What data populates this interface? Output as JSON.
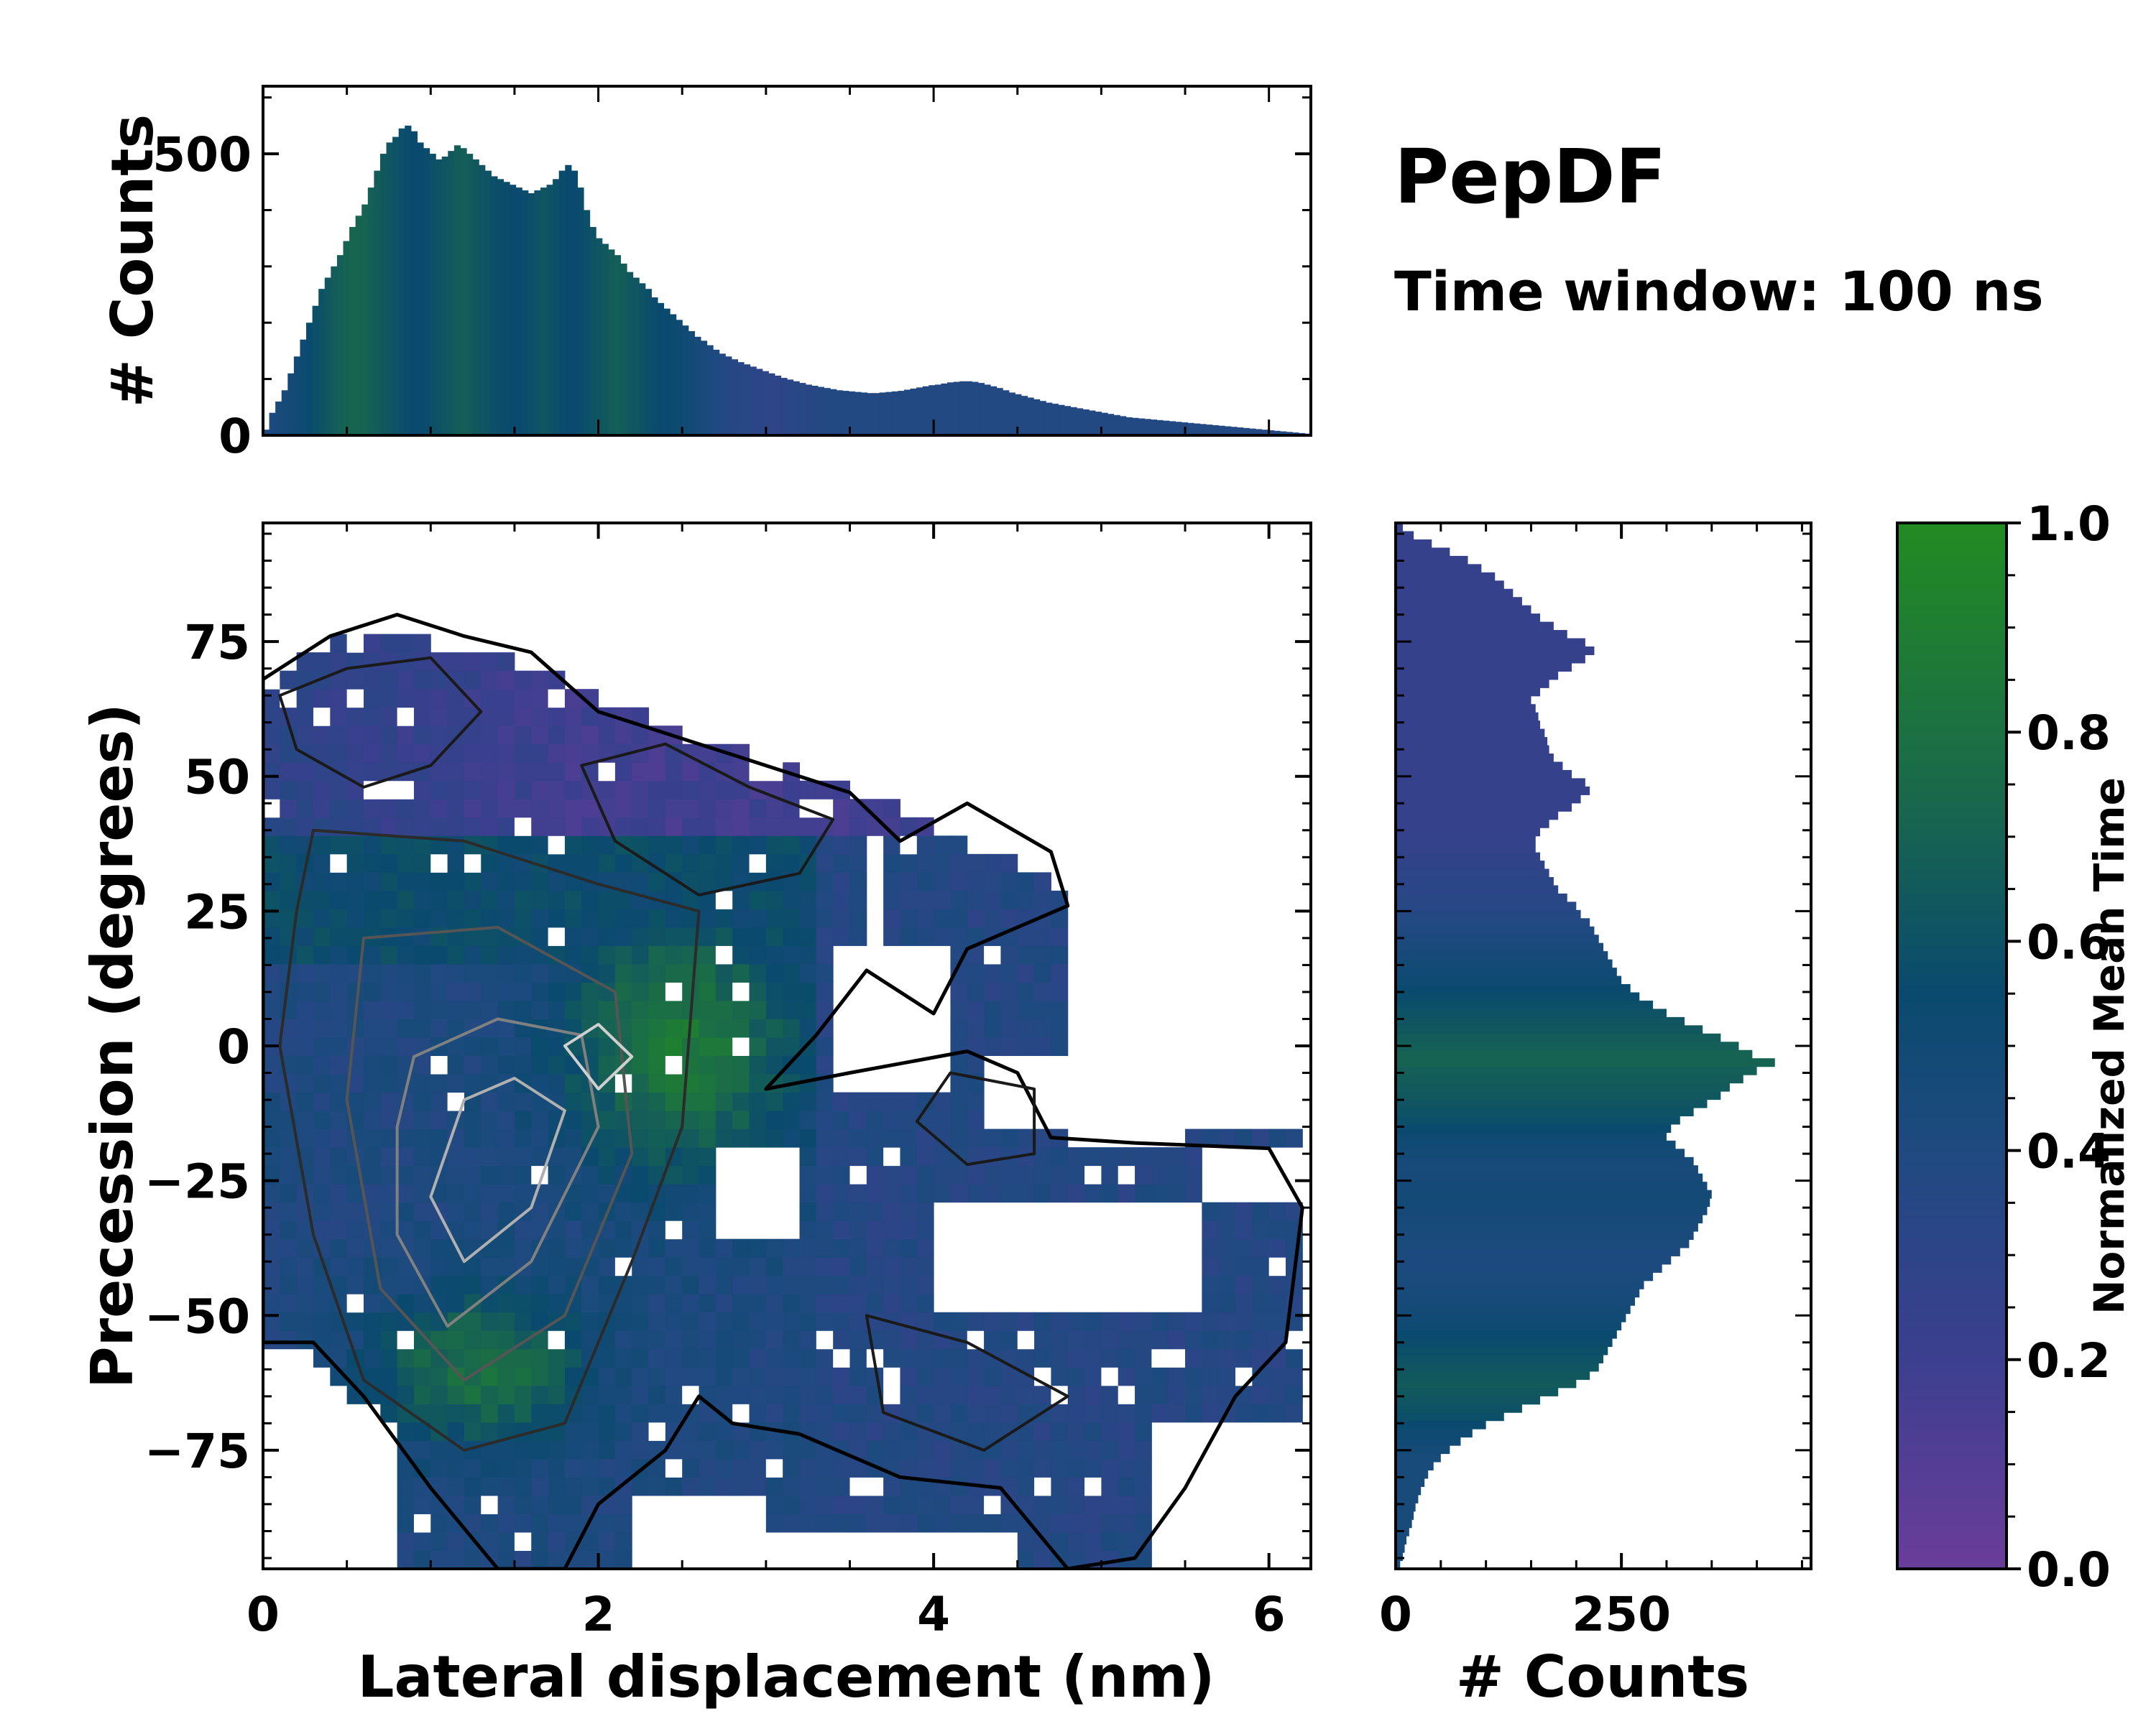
{
  "title_block": {
    "title": "PepDF",
    "subtitle": "Time window: 100 ns"
  },
  "chart_data": [
    {
      "id": "main",
      "type": "heatmap",
      "xlabel": "Lateral displacement (nm)",
      "ylabel": "Precession (degrees)",
      "xlim": [
        0,
        6.25
      ],
      "ylim": [
        -97,
        97
      ],
      "xticks": [
        0,
        2,
        4,
        6
      ],
      "xtick_labels": [
        "0",
        "2",
        "4",
        "6"
      ],
      "yticks": [
        75,
        50,
        25,
        0,
        -25,
        -50,
        -75
      ],
      "ytick_labels": [
        "75",
        "50",
        "25",
        "0",
        "−25",
        "−50",
        "−75"
      ],
      "value_label": "Normalized Mean Time",
      "description": "Occupied region colored by normalized mean time; overlaid density contours",
      "contours": [
        {
          "level": "low",
          "color": "#000000",
          "shape": "outer support boundary"
        },
        {
          "level": "mid",
          "color": "#2b2b2b",
          "shape": "density"
        },
        {
          "level": "high",
          "color": "#808080",
          "shape": "density"
        },
        {
          "level": "peak",
          "color": "#cfcfcf",
          "shape": "density"
        }
      ]
    },
    {
      "id": "top-hist",
      "type": "bar",
      "ylabel": "# Counts",
      "ylim": [
        0,
        620
      ],
      "yticks": [
        0,
        500
      ],
      "ytick_labels": [
        "0",
        "500"
      ],
      "bin_range": [
        0,
        6.25
      ],
      "values": [
        10,
        40,
        60,
        80,
        110,
        140,
        170,
        200,
        230,
        260,
        280,
        300,
        320,
        345,
        370,
        390,
        410,
        440,
        470,
        500,
        520,
        530,
        545,
        550,
        540,
        520,
        510,
        500,
        490,
        495,
        505,
        515,
        510,
        500,
        490,
        480,
        470,
        460,
        455,
        450,
        445,
        440,
        435,
        430,
        435,
        440,
        445,
        455,
        470,
        480,
        470,
        440,
        400,
        370,
        350,
        340,
        330,
        320,
        305,
        290,
        280,
        270,
        260,
        245,
        235,
        225,
        215,
        205,
        195,
        185,
        175,
        168,
        160,
        152,
        145,
        140,
        135,
        130,
        126,
        122,
        118,
        114,
        110,
        106,
        102,
        99,
        96,
        93,
        90,
        88,
        86,
        84,
        82,
        80,
        79,
        78,
        77,
        76,
        75,
        75,
        76,
        77,
        78,
        79,
        81,
        83,
        85,
        87,
        89,
        90,
        92,
        94,
        95,
        96,
        96,
        95,
        93,
        90,
        87,
        84,
        80,
        76,
        73,
        70,
        67,
        64,
        61,
        58,
        56,
        54,
        52,
        50,
        48,
        46,
        44,
        42,
        40,
        38,
        36,
        34,
        32,
        31,
        30,
        29,
        28,
        27,
        26,
        25,
        24,
        23,
        22,
        21,
        20,
        19,
        18,
        17,
        16,
        15,
        14,
        13,
        12,
        11,
        10,
        9,
        8,
        7,
        6,
        5,
        4,
        3
      ],
      "color_values": [
        0.4,
        0.42,
        0.44,
        0.46,
        0.48,
        0.5,
        0.52,
        0.55,
        0.58,
        0.6,
        0.63,
        0.66,
        0.68,
        0.7,
        0.72,
        0.72,
        0.7,
        0.68,
        0.66,
        0.64,
        0.62,
        0.6,
        0.58,
        0.56,
        0.55,
        0.55,
        0.56,
        0.58,
        0.6,
        0.62,
        0.64,
        0.66,
        0.67,
        0.66,
        0.64,
        0.62,
        0.6,
        0.58,
        0.57,
        0.56,
        0.55,
        0.55,
        0.56,
        0.58,
        0.6,
        0.62,
        0.6,
        0.58,
        0.56,
        0.55,
        0.55,
        0.56,
        0.58,
        0.6,
        0.62,
        0.64,
        0.66,
        0.68,
        0.66,
        0.64,
        0.62,
        0.6,
        0.58,
        0.56,
        0.55,
        0.54,
        0.53,
        0.52,
        0.5,
        0.48,
        0.46,
        0.44,
        0.42,
        0.4,
        0.38,
        0.36,
        0.35,
        0.34,
        0.33,
        0.32,
        0.31,
        0.3,
        0.3,
        0.3,
        0.31,
        0.32,
        0.33,
        0.34,
        0.35,
        0.36,
        0.37,
        0.38,
        0.38,
        0.38,
        0.38,
        0.38,
        0.38,
        0.38,
        0.38,
        0.38,
        0.38,
        0.38,
        0.38,
        0.38,
        0.38,
        0.38,
        0.38,
        0.38,
        0.38,
        0.38,
        0.38,
        0.38,
        0.38,
        0.38,
        0.38,
        0.38,
        0.38,
        0.38,
        0.38,
        0.38,
        0.38,
        0.38,
        0.38,
        0.38,
        0.38,
        0.38,
        0.38,
        0.38,
        0.38,
        0.38,
        0.38,
        0.38,
        0.38,
        0.38,
        0.38,
        0.38,
        0.38,
        0.38,
        0.38,
        0.38,
        0.38,
        0.38,
        0.38,
        0.38,
        0.38,
        0.38,
        0.38,
        0.38,
        0.38,
        0.38,
        0.38,
        0.38,
        0.38,
        0.38,
        0.38,
        0.38,
        0.38,
        0.38,
        0.38,
        0.38,
        0.38,
        0.38,
        0.38,
        0.38,
        0.38,
        0.38,
        0.38,
        0.38,
        0.38,
        0.38
      ]
    },
    {
      "id": "right-hist",
      "type": "bar",
      "orientation": "horizontal",
      "xlabel": "# Counts",
      "xlim": [
        0,
        460
      ],
      "xticks": [
        0,
        250
      ],
      "xtick_labels": [
        "0",
        "250"
      ],
      "bin_range": [
        -97,
        97
      ],
      "values": [
        5,
        8,
        10,
        12,
        15,
        18,
        20,
        22,
        25,
        28,
        32,
        36,
        42,
        50,
        60,
        72,
        85,
        100,
        120,
        140,
        160,
        180,
        200,
        215,
        225,
        230,
        235,
        240,
        245,
        250,
        255,
        260,
        265,
        270,
        275,
        285,
        295,
        305,
        315,
        325,
        330,
        335,
        340,
        345,
        348,
        350,
        345,
        340,
        335,
        330,
        320,
        310,
        300,
        305,
        315,
        330,
        345,
        360,
        370,
        385,
        400,
        420,
        395,
        380,
        360,
        340,
        320,
        300,
        285,
        270,
        260,
        250,
        245,
        240,
        235,
        230,
        225,
        220,
        215,
        205,
        200,
        190,
        180,
        175,
        170,
        165,
        160,
        155,
        155,
        160,
        170,
        180,
        195,
        205,
        215,
        210,
        195,
        185,
        175,
        170,
        168,
        165,
        160,
        158,
        155,
        150,
        160,
        170,
        180,
        195,
        210,
        220,
        210,
        190,
        175,
        160,
        150,
        140,
        130,
        120,
        110,
        95,
        80,
        60,
        40,
        20,
        8
      ],
      "color_values": [
        0.45,
        0.45,
        0.45,
        0.45,
        0.45,
        0.45,
        0.45,
        0.45,
        0.45,
        0.45,
        0.45,
        0.45,
        0.45,
        0.45,
        0.48,
        0.5,
        0.52,
        0.55,
        0.58,
        0.6,
        0.62,
        0.64,
        0.65,
        0.64,
        0.62,
        0.6,
        0.58,
        0.56,
        0.54,
        0.52,
        0.5,
        0.48,
        0.46,
        0.45,
        0.44,
        0.43,
        0.42,
        0.42,
        0.42,
        0.43,
        0.44,
        0.45,
        0.46,
        0.47,
        0.48,
        0.48,
        0.47,
        0.46,
        0.45,
        0.46,
        0.48,
        0.5,
        0.52,
        0.55,
        0.58,
        0.6,
        0.62,
        0.64,
        0.65,
        0.66,
        0.68,
        0.7,
        0.7,
        0.68,
        0.66,
        0.64,
        0.62,
        0.6,
        0.58,
        0.56,
        0.54,
        0.52,
        0.5,
        0.48,
        0.46,
        0.44,
        0.42,
        0.4,
        0.38,
        0.36,
        0.34,
        0.33,
        0.32,
        0.31,
        0.3,
        0.29,
        0.28,
        0.27,
        0.26,
        0.25,
        0.24,
        0.24,
        0.24,
        0.24,
        0.24,
        0.24,
        0.24,
        0.24,
        0.24,
        0.24,
        0.24,
        0.24,
        0.24,
        0.24,
        0.24,
        0.24,
        0.24,
        0.24,
        0.24,
        0.24,
        0.24,
        0.24,
        0.24,
        0.24,
        0.24,
        0.24,
        0.24,
        0.24,
        0.24,
        0.24,
        0.24,
        0.24,
        0.24,
        0.24,
        0.24,
        0.24,
        0.24
      ]
    },
    {
      "id": "colorbar",
      "type": "colorbar",
      "label": "Normalized Mean Time",
      "range": [
        0,
        1
      ],
      "ticks": [
        0,
        0.2,
        0.4,
        0.6,
        0.8,
        1.0
      ],
      "tick_labels": [
        "0.0",
        "0.2",
        "0.4",
        "0.6",
        "0.8",
        "1.0"
      ],
      "colors": [
        "#6a3d9a",
        "#3c3f8f",
        "#1f4a80",
        "#0f5a6a",
        "#1a7a40",
        "#228b22"
      ]
    }
  ]
}
